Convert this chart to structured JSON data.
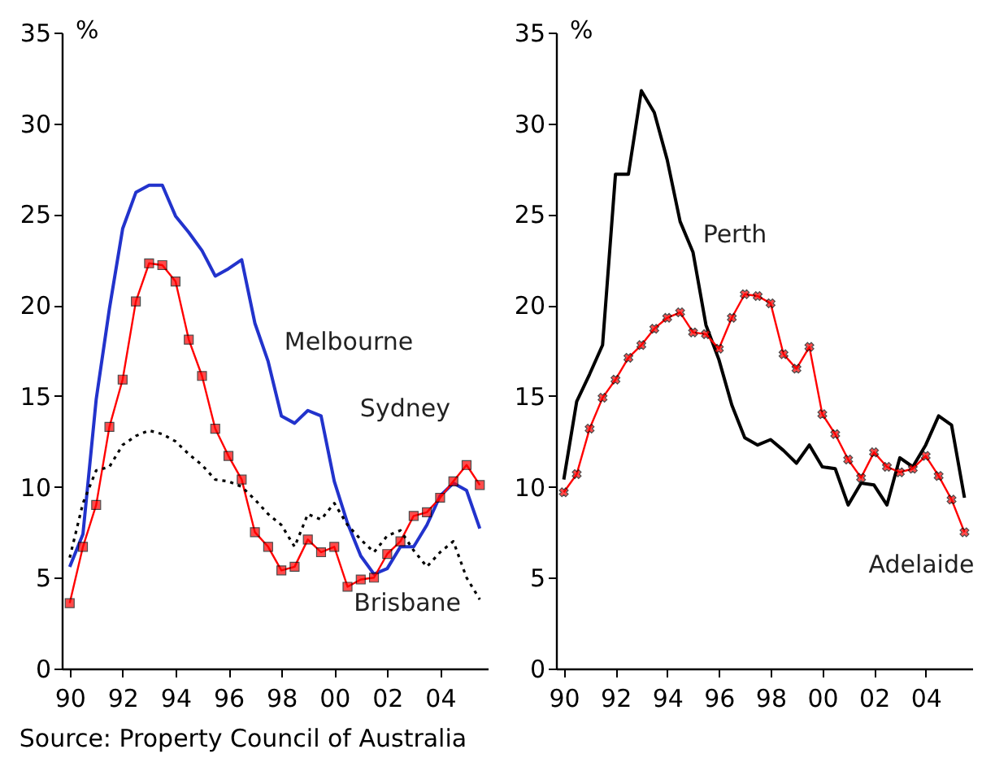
{
  "chart_data": [
    {
      "type": "line",
      "ylabel": "%",
      "annotations": [
        "Source:  Property Council of Australia"
      ],
      "x": [
        1990,
        1990.5,
        1991,
        1991.5,
        1992,
        1992.5,
        1993,
        1993.5,
        1994,
        1994.5,
        1995,
        1995.5,
        1996,
        1996.5,
        1997,
        1997.5,
        1998,
        1998.5,
        1999,
        1999.5,
        2000,
        2000.5,
        2001,
        2001.5,
        2002,
        2002.5,
        2003,
        2003.5,
        2004,
        2004.5,
        2005,
        2005.5
      ],
      "xlim": [
        1989.7,
        2005.8
      ],
      "xticks": [
        {
          "value": 1990,
          "label": "90"
        },
        {
          "value": 1992,
          "label": "92"
        },
        {
          "value": 1994,
          "label": "94"
        },
        {
          "value": 1996,
          "label": "96"
        },
        {
          "value": 1998,
          "label": "98"
        },
        {
          "value": 2000,
          "label": "00"
        },
        {
          "value": 2002,
          "label": "02"
        },
        {
          "value": 2004,
          "label": "04"
        }
      ],
      "ylim": [
        0,
        35
      ],
      "yticks": [
        0,
        5,
        10,
        15,
        20,
        25,
        30,
        35
      ],
      "grid": false,
      "series": [
        {
          "name": "Melbourne",
          "color": "#2233cc",
          "line_style": "solid",
          "marker": "none",
          "values": [
            5.6,
            7.4,
            14.8,
            19.8,
            24.2,
            26.2,
            26.6,
            26.6,
            24.9,
            24.0,
            23.0,
            21.6,
            22.0,
            22.5,
            19.0,
            16.9,
            13.9,
            13.5,
            14.2,
            13.9,
            10.3,
            8.0,
            6.2,
            5.2,
            5.5,
            6.7,
            6.7,
            7.9,
            9.5,
            10.2,
            9.8,
            7.7
          ]
        },
        {
          "name": "Sydney",
          "color": "#ff0000",
          "line_style": "solid",
          "marker": "square",
          "values": [
            3.6,
            6.7,
            9.0,
            13.3,
            15.9,
            20.2,
            22.3,
            22.2,
            21.3,
            18.1,
            16.1,
            13.2,
            11.7,
            10.4,
            7.5,
            6.7,
            5.4,
            5.6,
            7.1,
            6.4,
            6.7,
            4.5,
            4.9,
            5.0,
            6.3,
            7.0,
            8.4,
            8.6,
            9.4,
            10.3,
            11.2,
            10.1
          ]
        },
        {
          "name": "Brisbane",
          "color": "#000000",
          "line_style": "dotted",
          "marker": "none",
          "values": [
            6.1,
            9.1,
            10.9,
            11.1,
            12.3,
            12.8,
            13.1,
            12.9,
            12.5,
            11.8,
            11.2,
            10.4,
            10.3,
            10.0,
            9.3,
            8.5,
            7.9,
            6.7,
            8.5,
            8.2,
            9.1,
            7.9,
            7.1,
            6.4,
            7.3,
            7.6,
            6.5,
            5.6,
            6.4,
            7.0,
            5.0,
            3.8
          ]
        }
      ]
    },
    {
      "type": "line",
      "ylabel": "%",
      "x": [
        1990,
        1990.5,
        1991,
        1991.5,
        1992,
        1992.5,
        1993,
        1993.5,
        1994,
        1994.5,
        1995,
        1995.5,
        1996,
        1996.5,
        1997,
        1997.5,
        1998,
        1998.5,
        1999,
        1999.5,
        2000,
        2000.5,
        2001,
        2001.5,
        2002,
        2002.5,
        2003,
        2003.5,
        2004,
        2004.5,
        2005,
        2005.5
      ],
      "xlim": [
        1989.7,
        2005.8
      ],
      "xticks": [
        {
          "value": 1990,
          "label": "90"
        },
        {
          "value": 1992,
          "label": "92"
        },
        {
          "value": 1994,
          "label": "94"
        },
        {
          "value": 1996,
          "label": "96"
        },
        {
          "value": 1998,
          "label": "98"
        },
        {
          "value": 2000,
          "label": "00"
        },
        {
          "value": 2002,
          "label": "02"
        },
        {
          "value": 2004,
          "label": "04"
        }
      ],
      "ylim": [
        0,
        35
      ],
      "yticks": [
        0,
        5,
        10,
        15,
        20,
        25,
        30,
        35
      ],
      "grid": false,
      "series": [
        {
          "name": "Perth",
          "color": "#000000",
          "line_style": "solid",
          "marker": "none",
          "values": [
            10.4,
            14.7,
            16.2,
            17.8,
            27.2,
            27.2,
            31.8,
            30.6,
            28.0,
            24.6,
            22.9,
            18.9,
            17.0,
            14.5,
            12.7,
            12.3,
            12.6,
            12.0,
            11.3,
            12.3,
            11.1,
            11.0,
            9.0,
            10.2,
            10.1,
            9.0,
            11.6,
            11.1,
            12.3,
            13.9,
            13.4,
            9.4
          ]
        },
        {
          "name": "Adelaide",
          "color": "#ff0000",
          "line_style": "solid",
          "marker": "cross",
          "values": [
            9.7,
            10.7,
            13.2,
            14.9,
            15.9,
            17.1,
            17.8,
            18.7,
            19.3,
            19.6,
            18.5,
            18.4,
            17.6,
            19.3,
            20.6,
            20.5,
            20.1,
            17.3,
            16.5,
            17.7,
            14.0,
            12.9,
            11.5,
            10.5,
            11.9,
            11.1,
            10.8,
            11.0,
            11.7,
            10.6,
            9.3,
            7.5
          ]
        }
      ]
    }
  ]
}
